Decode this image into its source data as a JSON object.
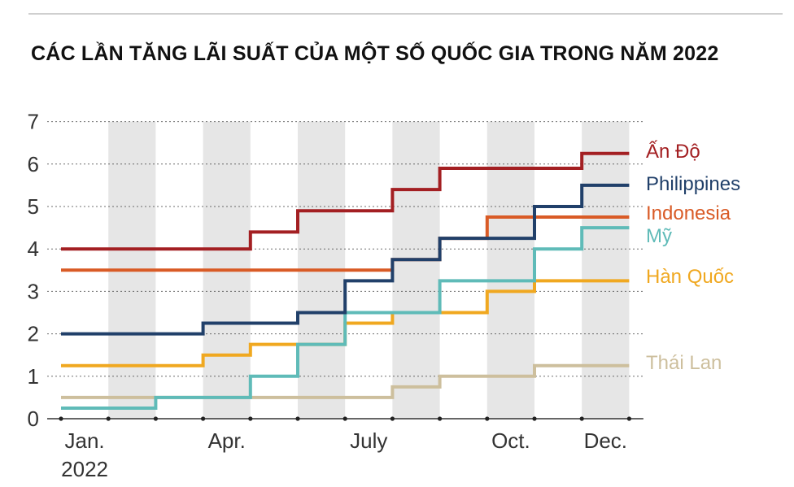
{
  "title": "CÁC LẦN TĂNG LÃI SUẤT CỦA MỘT SỐ QUỐC GIA TRONG NĂM 2022",
  "chart_data": {
    "type": "line",
    "step": true,
    "title": "CÁC LẦN TĂNG LÃI SUẤT CỦA MỘT SỐ QUỐC GIA TRONG NĂM 2022",
    "xlabel": "",
    "ylabel": "",
    "ylim": [
      0,
      7
    ],
    "xlim": [
      0,
      12.3
    ],
    "yticks": [
      "0",
      "1",
      "2",
      "3",
      "4",
      "5",
      "6",
      "7"
    ],
    "xticks": [
      {
        "x": 0.5,
        "label": "Jan.",
        "label2": "2022"
      },
      {
        "x": 3.5,
        "label": "Apr.",
        "label2": ""
      },
      {
        "x": 6.5,
        "label": "July",
        "label2": ""
      },
      {
        "x": 9.5,
        "label": "Oct.",
        "label2": ""
      },
      {
        "x": 11.5,
        "label": "Dec.",
        "label2": ""
      }
    ],
    "shaded_months": [
      1,
      3,
      5,
      7,
      9,
      11
    ],
    "grid": "horizontal",
    "legend": "right-inline",
    "series": [
      {
        "name": "Ấn Độ",
        "color": "#a31f22",
        "steps": [
          [
            0,
            4.0
          ],
          [
            4,
            4.4
          ],
          [
            5,
            4.9
          ],
          [
            7,
            5.4
          ],
          [
            8,
            5.9
          ],
          [
            11,
            6.25
          ]
        ]
      },
      {
        "name": "Philippines",
        "color": "#21406a",
        "steps": [
          [
            0,
            2.0
          ],
          [
            3,
            2.25
          ],
          [
            5,
            2.5
          ],
          [
            6,
            3.25
          ],
          [
            7,
            3.75
          ],
          [
            8,
            4.25
          ],
          [
            10,
            5.0
          ],
          [
            11,
            5.5
          ]
        ]
      },
      {
        "name": "Indonesia",
        "color": "#d95b26",
        "steps": [
          [
            0,
            3.5
          ],
          [
            7,
            3.75
          ],
          [
            8,
            4.25
          ],
          [
            9,
            4.75
          ]
        ]
      },
      {
        "name": "Mỹ",
        "color": "#5fbbb8",
        "steps": [
          [
            0,
            0.25
          ],
          [
            2,
            0.5
          ],
          [
            4,
            1.0
          ],
          [
            5,
            1.75
          ],
          [
            6,
            2.5
          ],
          [
            8,
            3.25
          ],
          [
            10,
            4.0
          ],
          [
            11,
            4.5
          ]
        ]
      },
      {
        "name": "Hàn Quốc",
        "color": "#f0a820",
        "steps": [
          [
            0,
            1.25
          ],
          [
            3,
            1.5
          ],
          [
            4,
            1.75
          ],
          [
            6,
            2.25
          ],
          [
            7,
            2.5
          ],
          [
            9,
            3.0
          ],
          [
            10,
            3.25
          ]
        ]
      },
      {
        "name": "Thái Lan",
        "color": "#cdbf9d",
        "steps": [
          [
            0,
            0.5
          ],
          [
            7,
            0.75
          ],
          [
            8,
            1.0
          ],
          [
            10,
            1.25
          ]
        ]
      }
    ]
  }
}
